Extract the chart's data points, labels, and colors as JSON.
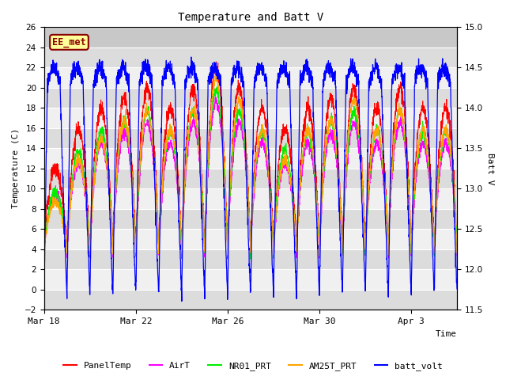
{
  "title": "Temperature and Batt V",
  "xlabel": "Time",
  "ylabel_left": "Temperature (C)",
  "ylabel_right": "Batt V",
  "ylim_left": [
    -2,
    26
  ],
  "ylim_right": [
    11.5,
    15.0
  ],
  "yticks_left": [
    -2,
    0,
    2,
    4,
    6,
    8,
    10,
    12,
    14,
    16,
    18,
    20,
    22,
    24,
    26
  ],
  "yticks_right": [
    11.5,
    12.0,
    12.5,
    13.0,
    13.5,
    14.0,
    14.5,
    15.0
  ],
  "xtick_labels": [
    "Mar 18",
    "Mar 22",
    "Mar 26",
    "Mar 30",
    "Apr 3"
  ],
  "xtick_days": [
    0,
    4,
    8,
    12,
    16
  ],
  "annotation_text": "EE_met",
  "annotation_color": "#8B0000",
  "annotation_bg": "#FFFF99",
  "bg_color_plot": "#DCDCDC",
  "bg_color_stripe_light": "#F0F0F0",
  "bg_color_stripe_dark": "#DCDCDC",
  "bg_top_band": "#C8C8C8",
  "colors": {
    "PanelTemp": "#FF0000",
    "AirT": "#FF00FF",
    "NR01_PRT": "#00EE00",
    "AM25T_PRT": "#FFA500",
    "batt_volt": "#0000FF"
  },
  "num_days": 18,
  "samples_per_day": 144,
  "batt_min": 11.5,
  "batt_max": 15.0,
  "temp_min": -2,
  "temp_max": 26
}
